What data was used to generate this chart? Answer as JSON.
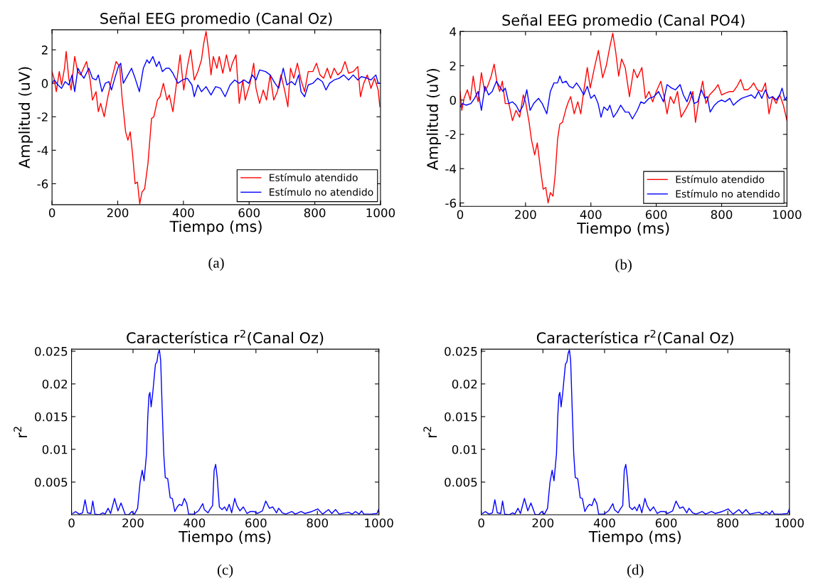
{
  "chart_data": [
    {
      "type": "line",
      "title": "Señal EEG promedio (Canal Oz)",
      "xlabel": "Tiempo (ms)",
      "ylabel": "Amplitud (uV)",
      "annotations": [
        "(a)"
      ],
      "xlim": [
        0,
        1000
      ],
      "xticks": [
        0,
        200,
        400,
        600,
        800,
        1000
      ],
      "ylim": [
        -7.25,
        3.2
      ],
      "yticks": [
        -6,
        -4,
        -2,
        0,
        2
      ],
      "grid": false,
      "legend": "bottom right",
      "series": [
        {
          "name": "Estímulo atendido",
          "color": "#ff0000",
          "x": [
            0,
            6,
            13,
            22,
            29,
            38,
            43,
            51,
            58,
            69,
            78,
            87,
            105,
            116,
            123,
            134,
            141,
            148,
            159,
            170,
            181,
            195,
            206,
            213,
            224,
            231,
            238,
            245,
            253,
            260,
            267,
            274,
            282,
            292,
            303,
            310,
            321,
            329,
            339,
            350,
            357,
            368,
            379,
            390,
            401,
            412,
            422,
            433,
            444,
            455,
            462,
            469,
            477,
            484,
            491,
            502,
            509,
            520,
            531,
            542,
            549,
            560,
            570,
            581,
            588,
            603,
            614,
            621,
            632,
            643,
            653,
            664,
            675,
            686,
            697,
            708,
            718,
            726,
            736,
            747,
            758,
            769,
            780,
            794,
            805,
            816,
            827,
            838,
            848,
            859,
            870,
            881,
            892,
            903,
            917,
            931,
            939,
            949,
            960,
            971,
            982,
            993,
            998
          ],
          "values": [
            0.7,
            0.3,
            -0.5,
            0.7,
            -0.1,
            0.9,
            1.9,
            0.3,
            -0.4,
            1.6,
            0.7,
            0.5,
            1.3,
            0.2,
            -1.0,
            -0.5,
            -1.7,
            -1.2,
            -2.0,
            -0.8,
            0.2,
            1.3,
            1.0,
            -0.8,
            -2.9,
            -3.4,
            -2.9,
            -4.2,
            -6.0,
            -5.9,
            -7.2,
            -6.5,
            -6.3,
            -4.8,
            -2.1,
            -2.0,
            -1.0,
            -0.8,
            0.0,
            -1.0,
            -0.7,
            -1.7,
            0.0,
            1.7,
            -0.4,
            1.0,
            2.0,
            0.2,
            0.7,
            1.4,
            2.4,
            3.1,
            1.9,
            0.5,
            1.6,
            0.9,
            1.6,
            0.6,
            1.7,
            0.7,
            1.2,
            1.7,
            -1.2,
            0.2,
            -1.0,
            0.0,
            1.2,
            -0.3,
            -1.2,
            -0.4,
            -1.0,
            0.5,
            -1.0,
            -0.5,
            0.5,
            -0.4,
            -1.4,
            0.9,
            0.3,
            1.2,
            0.2,
            -0.5,
            0.7,
            0.7,
            1.2,
            0.5,
            0.3,
            0.9,
            0.3,
            0.9,
            0.5,
            0.7,
            1.3,
            0.6,
            0.7,
            1.0,
            -0.8,
            0.0,
            0.5,
            -0.3,
            0.3,
            -0.4,
            -1.4
          ]
        },
        {
          "name": "Estímulo no atendido",
          "color": "#0000ff",
          "x": [
            0,
            7,
            18,
            29,
            40,
            51,
            61,
            69,
            79,
            90,
            97,
            112,
            123,
            134,
            141,
            152,
            162,
            173,
            181,
            191,
            202,
            209,
            217,
            231,
            242,
            253,
            266,
            278,
            289,
            296,
            307,
            318,
            326,
            336,
            347,
            357,
            368,
            383,
            397,
            412,
            426,
            433,
            444,
            455,
            469,
            484,
            498,
            513,
            527,
            542,
            556,
            570,
            585,
            599,
            610,
            621,
            632,
            650,
            664,
            679,
            690,
            704,
            715,
            729,
            740,
            751,
            758,
            769,
            780,
            794,
            809,
            823,
            834,
            845,
            859,
            874,
            888,
            903,
            917,
            931,
            942,
            960,
            971,
            986,
            993,
            1000
          ],
          "values": [
            0.0,
            0.2,
            -0.1,
            -0.3,
            0.1,
            -0.1,
            0.5,
            -0.5,
            0.9,
            0.5,
            0.3,
            0.9,
            0.3,
            0.2,
            0.5,
            -0.5,
            0.0,
            0.1,
            -0.4,
            0.3,
            1.0,
            1.2,
            0.0,
            0.5,
            0.9,
            0.3,
            -0.5,
            0.9,
            1.4,
            1.2,
            1.6,
            1.0,
            1.3,
            0.7,
            0.9,
            0.9,
            0.6,
            0.0,
            0.2,
            0.3,
            -0.1,
            -0.8,
            -0.1,
            -0.5,
            -0.2,
            -0.7,
            -0.2,
            -0.3,
            -0.8,
            -0.1,
            0.2,
            0.0,
            0.2,
            0.0,
            0.5,
            0.2,
            0.8,
            0.7,
            0.5,
            0.0,
            -0.3,
            0.9,
            -0.1,
            0.1,
            -0.1,
            0.5,
            -0.5,
            -0.8,
            -0.1,
            0.0,
            0.3,
            0.1,
            -0.4,
            0.0,
            0.2,
            0.3,
            0.5,
            0.2,
            0.5,
            0.2,
            0.4,
            0.3,
            0.2,
            0.5,
            0.0,
            0.0
          ]
        }
      ]
    },
    {
      "type": "line",
      "title": "Señal EEG promedio (Canal PO4)",
      "xlabel": "Tiempo (ms)",
      "ylabel": "Amplitud (uV)",
      "annotations": [
        "(b)"
      ],
      "xlim": [
        0,
        1000
      ],
      "xticks": [
        0,
        200,
        400,
        600,
        800,
        1000
      ],
      "ylim": [
        -6.2,
        4
      ],
      "yticks": [
        -6,
        -4,
        -2,
        0,
        2,
        4
      ],
      "grid": false,
      "legend": "bottom right",
      "series": [
        {
          "name": "Estímulo atendido",
          "color": "#ff0000",
          "x": [
            0,
            5,
            12,
            22,
            31,
            40,
            47,
            55,
            65,
            75,
            84,
            95,
            104,
            113,
            121,
            129,
            138,
            149,
            160,
            171,
            182,
            193,
            200,
            211,
            218,
            228,
            236,
            247,
            254,
            262,
            269,
            276,
            284,
            291,
            298,
            305,
            313,
            324,
            331,
            338,
            349,
            360,
            369,
            378,
            389,
            398,
            411,
            423,
            436,
            447,
            458,
            467,
            476,
            485,
            494,
            505,
            518,
            531,
            542,
            556,
            567,
            578,
            589,
            600,
            614,
            625,
            633,
            643,
            654,
            665,
            676,
            691,
            702,
            712,
            720,
            731,
            742,
            752,
            763,
            778,
            789,
            800,
            811,
            825,
            836,
            847,
            858,
            869,
            880,
            891,
            898,
            909,
            923,
            934,
            945,
            956,
            967,
            978,
            989,
            1000
          ],
          "values": [
            0.5,
            -0.6,
            0.1,
            0.6,
            0.0,
            1.4,
            0.5,
            -0.1,
            1.6,
            0.5,
            0.8,
            1.4,
            2.1,
            1.0,
            0.5,
            1.1,
            -0.2,
            -0.2,
            -1.2,
            -0.6,
            -1.0,
            0.3,
            -0.1,
            -1.3,
            -2.3,
            -3.2,
            -2.5,
            -4.2,
            -5.2,
            -5.1,
            -6.0,
            -5.4,
            -5.6,
            -4.3,
            -2.3,
            -1.4,
            -1.3,
            -0.5,
            -0.1,
            0.2,
            -0.8,
            -0.1,
            -0.8,
            0.5,
            1.9,
            0.7,
            1.9,
            2.9,
            1.3,
            2.0,
            3.1,
            3.9,
            2.8,
            1.4,
            2.4,
            1.9,
            0.2,
            1.8,
            1.3,
            1.9,
            0.1,
            0.5,
            -0.1,
            0.5,
            1.1,
            0.1,
            -0.8,
            0.2,
            -0.2,
            0.5,
            -1.0,
            -0.5,
            -0.1,
            0.5,
            -1.3,
            0.1,
            1.1,
            -0.2,
            0.3,
            0.6,
            0.9,
            0.3,
            0.4,
            0.5,
            0.5,
            0.8,
            1.2,
            0.6,
            0.6,
            0.8,
            1.0,
            0.6,
            0.5,
            1.0,
            -0.8,
            0.2,
            -0.2,
            0.3,
            -0.3,
            -1.2
          ]
        },
        {
          "name": "Estímulo no atendido",
          "color": "#0000ff",
          "x": [
            0,
            7,
            18,
            33,
            44,
            55,
            65,
            76,
            87,
            98,
            111,
            120,
            131,
            138,
            149,
            160,
            171,
            182,
            193,
            204,
            214,
            225,
            240,
            251,
            265,
            276,
            287,
            298,
            305,
            313,
            324,
            334,
            345,
            356,
            367,
            378,
            389,
            400,
            411,
            422,
            431,
            440,
            451,
            458,
            469,
            480,
            491,
            505,
            516,
            527,
            542,
            553,
            563,
            578,
            593,
            607,
            622,
            633,
            647,
            659,
            673,
            683,
            694,
            705,
            716,
            727,
            738,
            749,
            756,
            765,
            778,
            789,
            800,
            811,
            825,
            836,
            847,
            861,
            876,
            891,
            902,
            913,
            923,
            934,
            945,
            956,
            967,
            978,
            985,
            994,
            1000
          ],
          "values": [
            -0.4,
            -0.2,
            -0.3,
            -0.2,
            0.1,
            0.5,
            -0.6,
            0.8,
            0.3,
            0.5,
            1.1,
            0.8,
            0.5,
            0.7,
            -0.2,
            -0.1,
            -0.3,
            -0.7,
            -0.3,
            0.6,
            -0.6,
            -0.2,
            0.1,
            -0.2,
            -0.8,
            0.5,
            1.0,
            1.0,
            1.4,
            1.0,
            1.1,
            0.8,
            0.7,
            1.0,
            0.7,
            0.3,
            0.8,
            0.1,
            0.3,
            -0.2,
            -1.0,
            -0.4,
            -0.6,
            -0.3,
            -1.0,
            -0.7,
            -0.3,
            -0.7,
            -0.7,
            -1.1,
            -0.6,
            -0.1,
            -0.2,
            0.1,
            0.2,
            0.5,
            -0.1,
            0.9,
            0.7,
            0.6,
            0.9,
            0.3,
            -0.1,
            0.5,
            -0.2,
            -0.1,
            0.6,
            0.1,
            0.2,
            -0.7,
            -0.3,
            -0.1,
            0.0,
            -0.1,
            0.1,
            -0.3,
            -0.1,
            0.1,
            0.2,
            0.3,
            0.1,
            0.5,
            0.1,
            0.6,
            0.1,
            0.2,
            0.0,
            0.3,
            0.7,
            0.0,
            0.2
          ]
        }
      ]
    },
    {
      "type": "line",
      "title": "Característica r$^{2}$(Canal Oz)",
      "xlabel": "Tiempo (ms)",
      "ylabel": "r$^{2}$",
      "annotations": [
        "(c)"
      ],
      "xlim": [
        0,
        1000
      ],
      "xticks": [
        0,
        200,
        400,
        600,
        800,
        1000
      ],
      "ylim": [
        0,
        0.0253
      ],
      "yticks": [
        0.005,
        0.01,
        0.015,
        0.02,
        0.025
      ],
      "grid": false,
      "series": [
        {
          "color": "#0000ff",
          "x": [
            4,
            13,
            25,
            36,
            44,
            52,
            63,
            69,
            76,
            90,
            102,
            109,
            119,
            127,
            140,
            151,
            161,
            175,
            186,
            196,
            205,
            215,
            223,
            230,
            236,
            244,
            248,
            252,
            255,
            259,
            264,
            268,
            273,
            278,
            282,
            286,
            290,
            295,
            300,
            305,
            313,
            321,
            328,
            336,
            344,
            351,
            359,
            367,
            375,
            381,
            398,
            413,
            427,
            432,
            444,
            450,
            459,
            464,
            469,
            474,
            481,
            490,
            498,
            505,
            513,
            521,
            531,
            538,
            548,
            559,
            571,
            582,
            594,
            605,
            621,
            632,
            644,
            655,
            667,
            674,
            686,
            697,
            717,
            728,
            747,
            759,
            782,
            801,
            817,
            836,
            847,
            859,
            871,
            901,
            913,
            924,
            936,
            944,
            951,
            974,
            994,
            1000
          ],
          "values": [
            0.0002,
            0.0005,
            0.0001,
            0.0003,
            0.0023,
            0.0003,
            0.0002,
            0.0021,
            0.0001,
            0.0,
            0.0003,
            0.0001,
            0.001,
            0.0002,
            0.0025,
            0.0006,
            0.0018,
            0.0,
            0.0,
            0.0005,
            0.0001,
            0.001,
            0.005,
            0.0068,
            0.0052,
            0.0093,
            0.0149,
            0.0183,
            0.0187,
            0.0165,
            0.0185,
            0.0205,
            0.023,
            0.0234,
            0.0247,
            0.0252,
            0.0236,
            0.0162,
            0.0093,
            0.0057,
            0.0055,
            0.0026,
            0.0025,
            0.0005,
            0.0012,
            0.0016,
            0.0014,
            0.0025,
            0.0017,
            0.0001,
            0.0001,
            0.0006,
            0.0017,
            0.0008,
            0.0003,
            0.0008,
            0.0014,
            0.0068,
            0.0077,
            0.0057,
            0.0012,
            0.0008,
            0.0012,
            0.0006,
            0.0016,
            0.0003,
            0.0025,
            0.0014,
            0.0006,
            0.0012,
            0.0002,
            0.0005,
            0.0005,
            0.0002,
            0.0006,
            0.0021,
            0.001,
            0.0012,
            0.0003,
            0.001,
            0.0003,
            0.0001,
            0.0005,
            0.0001,
            0.0005,
            0.0002,
            0.0005,
            0.0009,
            0.0001,
            0.0008,
            0.0002,
            0.0008,
            0.0001,
            0.0004,
            0.0001,
            0.0005,
            0.0001,
            0.0006,
            0.0001,
            0.0001,
            0.0002,
            0.0009
          ]
        }
      ]
    },
    {
      "type": "line",
      "title": "Característica r$^{2}$(Canal Oz)",
      "xlabel": "Tiempo (ms)",
      "ylabel": "r$^{2}$",
      "annotations": [
        "(d)"
      ],
      "xlim": [
        0,
        1000
      ],
      "xticks": [
        0,
        200,
        400,
        600,
        800,
        1000
      ],
      "ylim": [
        0,
        0.0253
      ],
      "yticks": [
        0.005,
        0.01,
        0.015,
        0.02,
        0.025
      ],
      "grid": false,
      "series": [
        {
          "color": "#0000ff",
          "x": [
            4,
            13,
            25,
            36,
            44,
            52,
            63,
            69,
            76,
            90,
            102,
            109,
            119,
            127,
            140,
            151,
            161,
            175,
            186,
            196,
            205,
            215,
            223,
            230,
            236,
            244,
            248,
            252,
            255,
            259,
            264,
            268,
            273,
            278,
            282,
            286,
            290,
            295,
            300,
            305,
            313,
            321,
            328,
            336,
            344,
            351,
            359,
            367,
            375,
            381,
            398,
            413,
            427,
            432,
            444,
            450,
            459,
            464,
            469,
            474,
            481,
            490,
            498,
            505,
            513,
            521,
            531,
            538,
            548,
            559,
            571,
            582,
            594,
            605,
            621,
            632,
            644,
            655,
            667,
            674,
            686,
            697,
            717,
            728,
            747,
            759,
            782,
            801,
            817,
            836,
            847,
            859,
            871,
            901,
            913,
            924,
            936,
            944,
            951,
            974,
            994,
            1000
          ],
          "values": [
            0.0002,
            0.0005,
            0.0001,
            0.0003,
            0.0023,
            0.0003,
            0.0002,
            0.0021,
            0.0001,
            0.0,
            0.0003,
            0.0001,
            0.001,
            0.0002,
            0.0025,
            0.0006,
            0.0018,
            0.0,
            0.0,
            0.0005,
            0.0001,
            0.001,
            0.005,
            0.0068,
            0.0052,
            0.0093,
            0.0149,
            0.0183,
            0.0187,
            0.0165,
            0.0185,
            0.0205,
            0.023,
            0.0234,
            0.0247,
            0.0252,
            0.0236,
            0.0162,
            0.0093,
            0.0057,
            0.0055,
            0.0026,
            0.0025,
            0.0005,
            0.0012,
            0.0016,
            0.0014,
            0.0025,
            0.0017,
            0.0001,
            0.0001,
            0.0006,
            0.0017,
            0.0008,
            0.0003,
            0.0008,
            0.0014,
            0.0068,
            0.0077,
            0.0057,
            0.0012,
            0.0008,
            0.0012,
            0.0006,
            0.0016,
            0.0003,
            0.0025,
            0.0014,
            0.0006,
            0.0012,
            0.0002,
            0.0005,
            0.0005,
            0.0002,
            0.0006,
            0.0021,
            0.001,
            0.0012,
            0.0003,
            0.001,
            0.0003,
            0.0001,
            0.0005,
            0.0001,
            0.0005,
            0.0002,
            0.0005,
            0.0009,
            0.0001,
            0.0008,
            0.0002,
            0.0008,
            0.0001,
            0.0004,
            0.0001,
            0.0005,
            0.0001,
            0.0006,
            0.0001,
            0.0001,
            0.0002,
            0.0009
          ]
        }
      ]
    }
  ]
}
